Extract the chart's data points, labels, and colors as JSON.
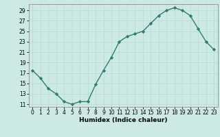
{
  "x": [
    0,
    1,
    2,
    3,
    4,
    5,
    6,
    7,
    8,
    9,
    10,
    11,
    12,
    13,
    14,
    15,
    16,
    17,
    18,
    19,
    20,
    21,
    22,
    23
  ],
  "y": [
    17.5,
    16.0,
    14.0,
    13.0,
    11.5,
    11.0,
    11.5,
    11.5,
    14.8,
    17.5,
    20.0,
    23.0,
    24.0,
    24.5,
    25.0,
    26.5,
    28.0,
    29.0,
    29.5,
    29.0,
    28.0,
    25.5,
    23.0,
    21.5
  ],
  "xlabel": "Humidex (Indice chaleur)",
  "ylim": [
    10.5,
    30.2
  ],
  "yticks": [
    11,
    13,
    15,
    17,
    19,
    21,
    23,
    25,
    27,
    29
  ],
  "xticks": [
    0,
    1,
    2,
    3,
    4,
    5,
    6,
    7,
    8,
    9,
    10,
    11,
    12,
    13,
    14,
    15,
    16,
    17,
    18,
    19,
    20,
    21,
    22,
    23
  ],
  "line_color": "#2E7D6E",
  "marker_color": "#2E7D6E",
  "bg_color": "#CCE9E5",
  "grid_color": "#B8D8D4",
  "border_color": "#999999",
  "tick_fontsize": 5.5,
  "xlabel_fontsize": 6.5
}
